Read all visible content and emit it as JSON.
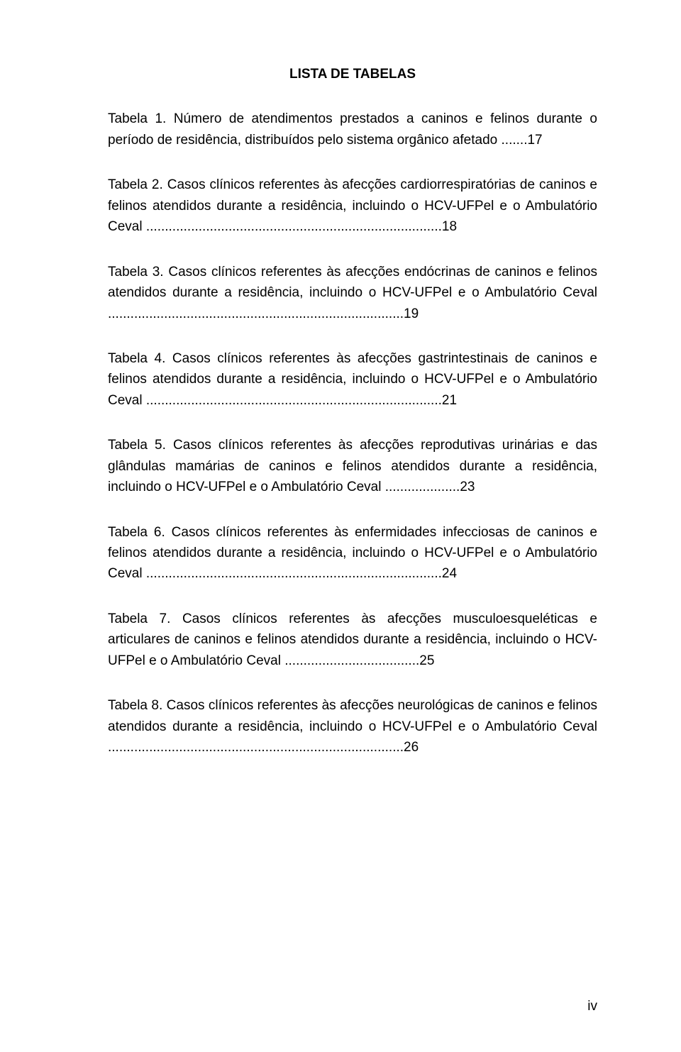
{
  "title": "LISTA DE TABELAS",
  "entries": [
    {
      "label": "Tabela 1.",
      "desc": "Número de atendimentos prestados a caninos e felinos durante o período de residência, distribuídos pelo sistema orgânico afetado",
      "leader": ".......",
      "page": "17"
    },
    {
      "label": "Tabela 2.",
      "desc": "Casos clínicos referentes às afecções cardiorrespiratórias de caninos e felinos atendidos durante a residência, incluindo o HCV-UFPel e o Ambulatório Ceval",
      "leader": "...............................................................................",
      "page": "18"
    },
    {
      "label": "Tabela 3.",
      "desc": "Casos clínicos referentes às afecções endócrinas de caninos e felinos atendidos durante a residência, incluindo o HCV-UFPel e o Ambulatório Ceval",
      "leader": "...............................................................................",
      "page": "19"
    },
    {
      "label": "Tabela 4.",
      "desc": "Casos clínicos referentes às afecções gastrintestinais de caninos e felinos atendidos durante a residência, incluindo o HCV-UFPel e o Ambulatório Ceval",
      "leader": "...............................................................................",
      "page": "21"
    },
    {
      "label": "Tabela 5.",
      "desc": "Casos clínicos referentes às afecções reprodutivas urinárias e das glândulas mamárias de caninos e felinos atendidos durante a residência, incluindo o HCV-UFPel e o Ambulatório Ceval",
      "leader": "....................",
      "page": "23"
    },
    {
      "label": "Tabela 6.",
      "desc": "Casos clínicos referentes às enfermidades infecciosas de caninos e felinos atendidos durante a residência, incluindo o HCV-UFPel e o Ambulatório Ceval",
      "leader": "...............................................................................",
      "page": "24"
    },
    {
      "label": "Tabela 7.",
      "desc": "Casos clínicos referentes às afecções musculoesqueléticas e articulares de caninos e felinos atendidos durante a residência, incluindo o HCV-UFPel e o Ambulatório Ceval",
      "leader": "....................................",
      "page": "25"
    },
    {
      "label": "Tabela 8.",
      "desc": "Casos clínicos referentes às afecções neurológicas de caninos e felinos atendidos durante a residência, incluindo o HCV-UFPel e o Ambulatório Ceval",
      "leader": "...............................................................................",
      "page": "26"
    }
  ],
  "pageNumber": "iv"
}
